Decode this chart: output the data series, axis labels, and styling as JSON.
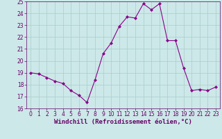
{
  "x": [
    0,
    1,
    2,
    3,
    4,
    5,
    6,
    7,
    8,
    9,
    10,
    11,
    12,
    13,
    14,
    15,
    16,
    17,
    18,
    19,
    20,
    21,
    22,
    23
  ],
  "y": [
    19.0,
    18.9,
    18.6,
    18.3,
    18.1,
    17.5,
    17.1,
    16.5,
    18.4,
    20.6,
    21.5,
    22.9,
    23.7,
    23.6,
    24.8,
    24.3,
    24.8,
    21.7,
    21.7,
    19.4,
    17.5,
    17.6,
    17.5,
    17.8
  ],
  "line_color": "#880088",
  "marker": "D",
  "markersize": 2,
  "linewidth": 0.8,
  "background_color": "#cce8e8",
  "grid_color": "#aacccc",
  "xlabel": "Windchill (Refroidissement éolien,°C)",
  "xlim": [
    -0.5,
    23.5
  ],
  "ylim": [
    16,
    25
  ],
  "yticks": [
    16,
    17,
    18,
    19,
    20,
    21,
    22,
    23,
    24,
    25
  ],
  "xticks": [
    0,
    1,
    2,
    3,
    4,
    5,
    6,
    7,
    8,
    9,
    10,
    11,
    12,
    13,
    14,
    15,
    16,
    17,
    18,
    19,
    20,
    21,
    22,
    23
  ],
  "tick_label_fontsize": 5.5,
  "xlabel_fontsize": 6.5,
  "tick_color": "#660066",
  "spine_color": "#660066"
}
